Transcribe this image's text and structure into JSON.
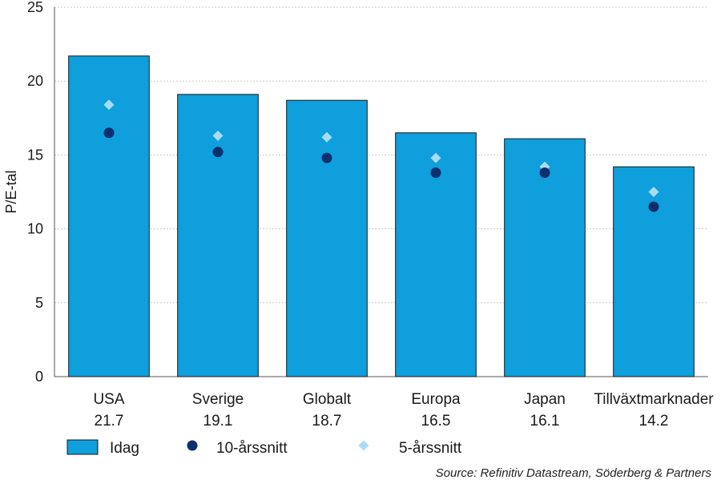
{
  "chart_data": {
    "type": "bar",
    "ylabel": "P/E-tal",
    "ylim": [
      0,
      25
    ],
    "yticks": [
      0,
      5,
      10,
      15,
      20,
      25
    ],
    "grid": true,
    "categories": [
      "USA",
      "Sverige",
      "Globalt",
      "Europa",
      "Japan",
      "Tillväxtmarknader"
    ],
    "value_labels": [
      "21.7",
      "19.1",
      "18.7",
      "16.5",
      "16.1",
      "14.2"
    ],
    "series": [
      {
        "name": "Idag",
        "kind": "bar",
        "color": "#0e9fdc",
        "values": [
          21.7,
          19.1,
          18.7,
          16.5,
          16.1,
          14.2
        ]
      },
      {
        "name": "10-årssnitt",
        "kind": "circle",
        "color": "#0d2f6e",
        "values": [
          16.5,
          15.2,
          14.8,
          13.8,
          13.8,
          11.5
        ]
      },
      {
        "name": "5-årssnitt",
        "kind": "diamond",
        "color": "#a8dcf3",
        "values": [
          18.4,
          16.3,
          16.2,
          14.8,
          14.2,
          12.5
        ]
      }
    ],
    "legend_position": "bottom-left",
    "source": "Source: Refinitiv Datastream, Söderberg & Partners"
  }
}
